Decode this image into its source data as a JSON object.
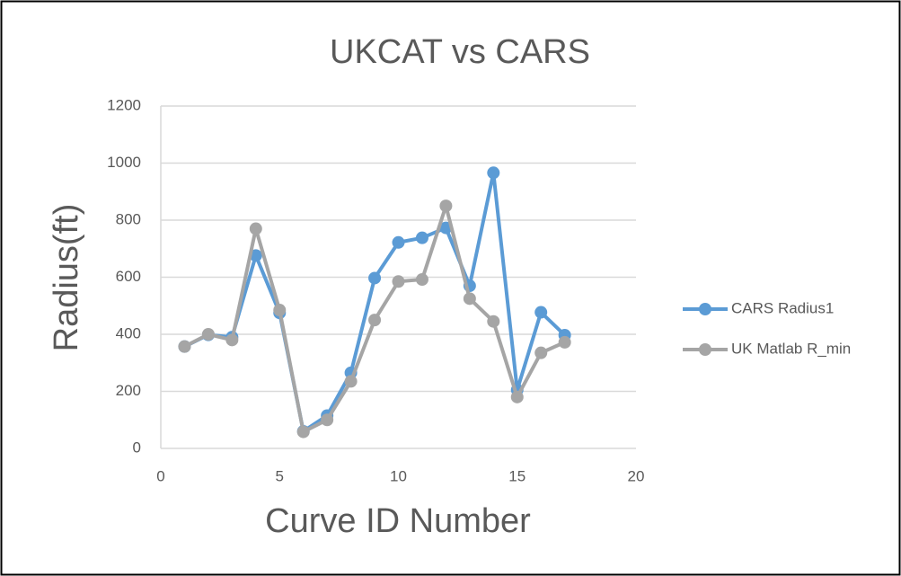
{
  "chart_data": {
    "type": "line",
    "title": "UKCAT vs CARS",
    "x_label": "Curve ID Number",
    "y_label": "Radius(ft)",
    "x": [
      1,
      2,
      3,
      4,
      5,
      6,
      7,
      8,
      9,
      10,
      11,
      12,
      13,
      14,
      15,
      16,
      17
    ],
    "series": [
      {
        "name": "CARS Radius1",
        "color": "#5b9bd5",
        "values": [
          357,
          398,
          390,
          676,
          475,
          60,
          115,
          265,
          597,
          722,
          738,
          773,
          570,
          966,
          205,
          477,
          397
        ]
      },
      {
        "name": "UK Matlab R_min",
        "color": "#a5a5a5",
        "values": [
          357,
          400,
          380,
          770,
          485,
          58,
          100,
          235,
          450,
          585,
          592,
          850,
          525,
          445,
          180,
          335,
          372
        ]
      }
    ],
    "xlim": [
      0,
      20
    ],
    "xticks": [
      0,
      5,
      10,
      15,
      20
    ],
    "ylim": [
      0,
      1200
    ],
    "yticks": [
      0,
      200,
      400,
      600,
      800,
      1000,
      1200
    ],
    "grid": true,
    "legend": "right"
  }
}
